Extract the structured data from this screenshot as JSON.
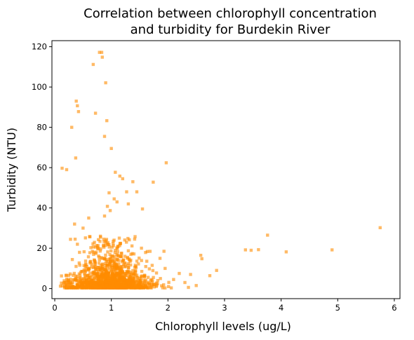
{
  "chart_data": {
    "type": "scatter",
    "title_line1": "Correlation between chlorophyll concentration",
    "title_line2": "and turbidity for Burdekin River",
    "xlabel": "Chlorophyll levels (ug/L)",
    "ylabel": "Turbidity (NTU)",
    "xlim": [
      -0.05,
      6.1
    ],
    "ylim": [
      -5,
      123
    ],
    "xticks": [
      0,
      1,
      2,
      3,
      4,
      5,
      6
    ],
    "yticks": [
      0,
      20,
      40,
      60,
      80,
      100,
      120
    ],
    "marker_color": "#FF8C00",
    "marker_shape": "square",
    "grid": false,
    "legend": "none",
    "cluster": {
      "description_note": "dense cloud of observations",
      "x_center": 1.0,
      "x_spread": 0.35,
      "y_mean": 6.0,
      "count": 1300,
      "seed": 7
    },
    "points": [
      [
        0.79,
        117.2
      ],
      [
        0.83,
        117.2
      ],
      [
        0.84,
        114.8
      ],
      [
        0.68,
        111.2
      ],
      [
        0.9,
        102.1
      ],
      [
        0.38,
        93.0
      ],
      [
        0.4,
        90.7
      ],
      [
        0.42,
        87.8
      ],
      [
        0.72,
        87.0
      ],
      [
        0.92,
        83.3
      ],
      [
        0.3,
        80.0
      ],
      [
        0.88,
        75.5
      ],
      [
        1.0,
        69.5
      ],
      [
        0.37,
        64.8
      ],
      [
        0.13,
        59.7
      ],
      [
        0.21,
        59.0
      ],
      [
        1.97,
        62.4
      ],
      [
        1.07,
        57.7
      ],
      [
        1.15,
        55.8
      ],
      [
        1.2,
        54.5
      ],
      [
        1.38,
        53.0
      ],
      [
        1.74,
        52.8
      ],
      [
        1.27,
        48.0
      ],
      [
        1.45,
        48.0
      ],
      [
        0.96,
        47.5
      ],
      [
        1.05,
        44.5
      ],
      [
        1.1,
        43.0
      ],
      [
        0.93,
        40.8
      ],
      [
        0.98,
        38.7
      ],
      [
        1.55,
        39.5
      ],
      [
        1.3,
        42.0
      ],
      [
        0.88,
        36.0
      ],
      [
        0.6,
        35.0
      ],
      [
        0.35,
        32.0
      ],
      [
        0.5,
        30.0
      ],
      [
        5.75,
        30.2
      ],
      [
        3.76,
        26.5
      ],
      [
        3.37,
        19.2
      ],
      [
        3.47,
        19.0
      ],
      [
        3.6,
        19.3
      ],
      [
        4.09,
        18.2
      ],
      [
        4.9,
        19.2
      ],
      [
        2.58,
        16.5
      ],
      [
        2.6,
        14.8
      ],
      [
        2.86,
        9.0
      ],
      [
        2.74,
        6.4
      ],
      [
        2.4,
        7.0
      ],
      [
        2.2,
        7.5
      ],
      [
        2.1,
        4.5
      ],
      [
        2.3,
        3.0
      ],
      [
        1.93,
        18.5
      ],
      [
        1.86,
        15.0
      ],
      [
        1.95,
        10.0
      ],
      [
        0.36,
        24.5
      ],
      [
        0.4,
        22.0
      ],
      [
        0.25,
        3.0
      ],
      [
        0.18,
        1.5
      ],
      [
        0.1,
        1.2
      ],
      [
        0.22,
        2.0
      ],
      [
        2.5,
        1.5
      ]
    ]
  }
}
